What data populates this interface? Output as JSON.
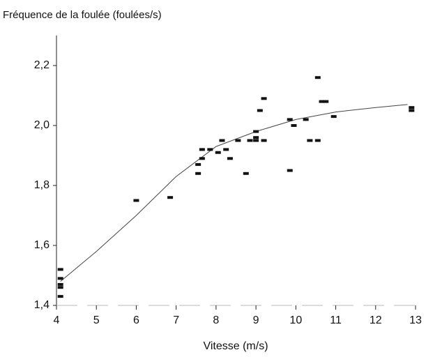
{
  "chart_data": {
    "type": "scatter",
    "title": "Fréquence de la foulée (foulées/s)",
    "x_label": "Vitesse (m/s)",
    "xlim": [
      4,
      13
    ],
    "ylim": [
      1.4,
      2.3
    ],
    "xticks": [
      4,
      5,
      6,
      7,
      8,
      9,
      10,
      11,
      12,
      13
    ],
    "yticks": [
      {
        "value": 1.4,
        "label": "1,4"
      },
      {
        "value": 1.6,
        "label": "1,6"
      },
      {
        "value": 1.8,
        "label": "1,8"
      },
      {
        "value": 2.0,
        "label": "2,0"
      },
      {
        "value": 2.2,
        "label": "2,2"
      }
    ],
    "color": "#111111",
    "x": [
      4.1,
      4.1,
      4.1,
      4.1,
      4.1,
      6.0,
      6.85,
      7.55,
      7.55,
      7.65,
      7.65,
      7.85,
      8.05,
      8.15,
      8.25,
      8.35,
      8.55,
      8.75,
      8.85,
      9.0,
      9.0,
      9.0,
      9.1,
      9.2,
      9.2,
      9.85,
      9.85,
      9.95,
      10.25,
      10.35,
      10.55,
      10.55,
      10.65,
      10.75,
      10.95,
      12.9,
      12.9
    ],
    "y": [
      1.52,
      1.49,
      1.47,
      1.46,
      1.43,
      1.75,
      1.76,
      1.84,
      1.87,
      1.89,
      1.92,
      1.92,
      1.91,
      1.95,
      1.92,
      1.89,
      1.95,
      1.84,
      1.95,
      1.98,
      1.96,
      1.95,
      2.05,
      2.09,
      1.95,
      2.02,
      1.85,
      2.0,
      2.02,
      1.95,
      2.16,
      1.95,
      2.08,
      2.08,
      2.03,
      2.06,
      2.05
    ],
    "fit_x": [
      4.1,
      5,
      6,
      7,
      8,
      9,
      10,
      11,
      12,
      12.8
    ],
    "fit_y": [
      1.48,
      1.58,
      1.7,
      1.83,
      1.93,
      1.98,
      2.02,
      2.045,
      2.06,
      2.07
    ]
  }
}
